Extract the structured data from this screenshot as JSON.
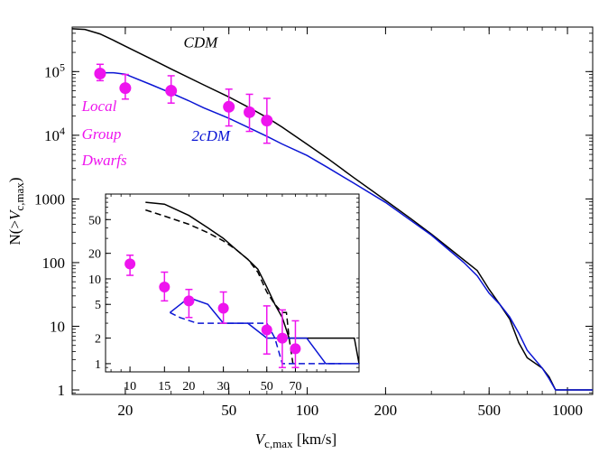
{
  "chart_data": {
    "type": "line",
    "xscale": "log",
    "yscale": "log",
    "xlabel": {
      "v": "V",
      "sub": "c,max",
      "units": " [km/s]"
    },
    "ylabel": {
      "pre": "N(>",
      "v": "V",
      "sub": "c,max",
      "post": ")"
    },
    "xlim": [
      12.5,
      1250
    ],
    "ylim": [
      0.85,
      500000
    ],
    "x_ticks": [
      {
        "value": 20,
        "label": "20"
      },
      {
        "value": 50,
        "label": "50"
      },
      {
        "value": 100,
        "label": "100"
      },
      {
        "value": 200,
        "label": "200"
      },
      {
        "value": 500,
        "label": "500"
      },
      {
        "value": 1000,
        "label": "1000"
      }
    ],
    "y_ticks": [
      {
        "value": 1,
        "label": "1"
      },
      {
        "value": 10,
        "label": "10"
      },
      {
        "value": 100,
        "label": "100"
      },
      {
        "value": 1000,
        "label": "1000"
      },
      {
        "value": 10000,
        "label": "10",
        "exp": "4"
      },
      {
        "value": 100000,
        "label": "10",
        "exp": "5"
      }
    ],
    "series": [
      {
        "name": "CDM",
        "color": "#000000",
        "style": "solid",
        "x": [
          12.5,
          14,
          16,
          18,
          20,
          25,
          30,
          40,
          50,
          60,
          70,
          80,
          100,
          120,
          150,
          200,
          250,
          300,
          400,
          450,
          500,
          550,
          600,
          650,
          700,
          800,
          850,
          900,
          1000,
          1250
        ],
        "y": [
          470000,
          460000,
          390000,
          310000,
          250000,
          160000,
          110000,
          62000,
          40000,
          27000,
          19000,
          13500,
          7200,
          4300,
          2200,
          950,
          490,
          280,
          110,
          75,
          38,
          22,
          13,
          5.5,
          3.2,
          2.2,
          1.6,
          1,
          1,
          1
        ]
      },
      {
        "name": "2cDM",
        "color": "#0a14d4",
        "style": "solid",
        "x": [
          16,
          18,
          20,
          25,
          30,
          35,
          40,
          50,
          60,
          70,
          80,
          100,
          120,
          150,
          200,
          250,
          300,
          400,
          450,
          500,
          550,
          600,
          650,
          700,
          800,
          850,
          900,
          1000,
          1250
        ],
        "y": [
          96000,
          96000,
          91000,
          63000,
          46000,
          35000,
          27000,
          18500,
          13000,
          9600,
          7300,
          4800,
          3100,
          1800,
          880,
          460,
          270,
          100,
          62,
          33,
          22,
          14,
          7.8,
          4.2,
          2.2,
          1.5,
          1,
          1,
          1
        ]
      }
    ],
    "points": {
      "name": "Local Group Dwarfs",
      "color": "#ee14ee",
      "x": [
        16,
        20,
        30,
        50,
        60,
        70
      ],
      "y": [
        93000,
        55000,
        50000,
        28000,
        23000,
        17000
      ],
      "err_lo": [
        72000,
        37000,
        32000,
        14000,
        11500,
        7500
      ],
      "err_hi": [
        130000,
        90000,
        86000,
        53000,
        44000,
        38000
      ]
    },
    "annotations": [
      {
        "text": "CDM",
        "color": "#000000",
        "x": 33.5,
        "y": 240000
      },
      {
        "text": "2cDM",
        "color": "#0a14d4",
        "x": 36,
        "y": 8200
      },
      {
        "text": "Local",
        "color": "#ee14ee",
        "x": 13.6,
        "y": 24000
      },
      {
        "text": "Group",
        "color": "#ee14ee",
        "x": 13.6,
        "y": 8800
      },
      {
        "text": "Dwarfs",
        "color": "#ee14ee",
        "x": 13.6,
        "y": 3400
      }
    ],
    "inset": {
      "xlim": [
        7.5,
        148
      ],
      "ylim": [
        0.8,
        100
      ],
      "x_ticks": [
        {
          "value": 10,
          "label": "10"
        },
        {
          "value": 15,
          "label": "15"
        },
        {
          "value": 20,
          "label": "20"
        },
        {
          "value": 30,
          "label": "30"
        },
        {
          "value": 50,
          "label": "50"
        },
        {
          "value": 70,
          "label": "70"
        }
      ],
      "y_ticks": [
        {
          "value": 1,
          "label": "1"
        },
        {
          "value": 2,
          "label": "2"
        },
        {
          "value": 5,
          "label": "5"
        },
        {
          "value": 10,
          "label": "10"
        },
        {
          "value": 20,
          "label": "20"
        },
        {
          "value": 50,
          "label": "50"
        }
      ],
      "series": [
        {
          "name": "CDM",
          "color": "#000000",
          "style": "solid",
          "x": [
            12,
            15,
            20,
            25,
            30,
            35,
            40,
            45,
            50,
            55,
            60,
            65,
            70,
            75,
            80,
            100,
            120,
            140,
            148
          ],
          "y": [
            80,
            76,
            56,
            40,
            30,
            22,
            17,
            13,
            8,
            5,
            3.5,
            2,
            2,
            2,
            2,
            2,
            2,
            2,
            1
          ]
        },
        {
          "name": "CDM",
          "color": "#000000",
          "style": "dashed",
          "x": [
            12,
            15,
            20,
            25,
            30,
            35,
            40,
            45,
            50,
            55,
            60,
            63,
            65,
            68
          ],
          "y": [
            65,
            55,
            44,
            35,
            28,
            22,
            17,
            12,
            7,
            5,
            4,
            4,
            2,
            1
          ]
        },
        {
          "name": "2cDM",
          "color": "#0a14d4",
          "style": "solid",
          "x": [
            16,
            20,
            25,
            30,
            40,
            50,
            60,
            70,
            80,
            100,
            120,
            148
          ],
          "y": [
            4,
            6,
            5,
            3,
            3,
            2,
            2,
            2,
            2,
            1,
            1,
            1
          ]
        },
        {
          "name": "2cDM",
          "color": "#0a14d4",
          "style": "dashed",
          "x": [
            16,
            18,
            22,
            25,
            30,
            40,
            50,
            55,
            60,
            80,
            100,
            120
          ],
          "y": [
            4,
            3.5,
            3,
            3,
            3,
            3,
            3,
            2,
            1,
            1,
            1,
            1
          ]
        }
      ],
      "points": {
        "color": "#ee14ee",
        "x": [
          10,
          15,
          20,
          30,
          50,
          60,
          70
        ],
        "y": [
          15,
          8,
          5.5,
          4.5,
          2.5,
          2,
          1.5
        ],
        "err_lo": [
          11,
          5.5,
          3.5,
          3,
          1.3,
          0.9,
          0.9
        ],
        "err_hi": [
          19,
          12,
          7.5,
          7,
          4.8,
          4.3,
          3.2
        ]
      }
    }
  }
}
